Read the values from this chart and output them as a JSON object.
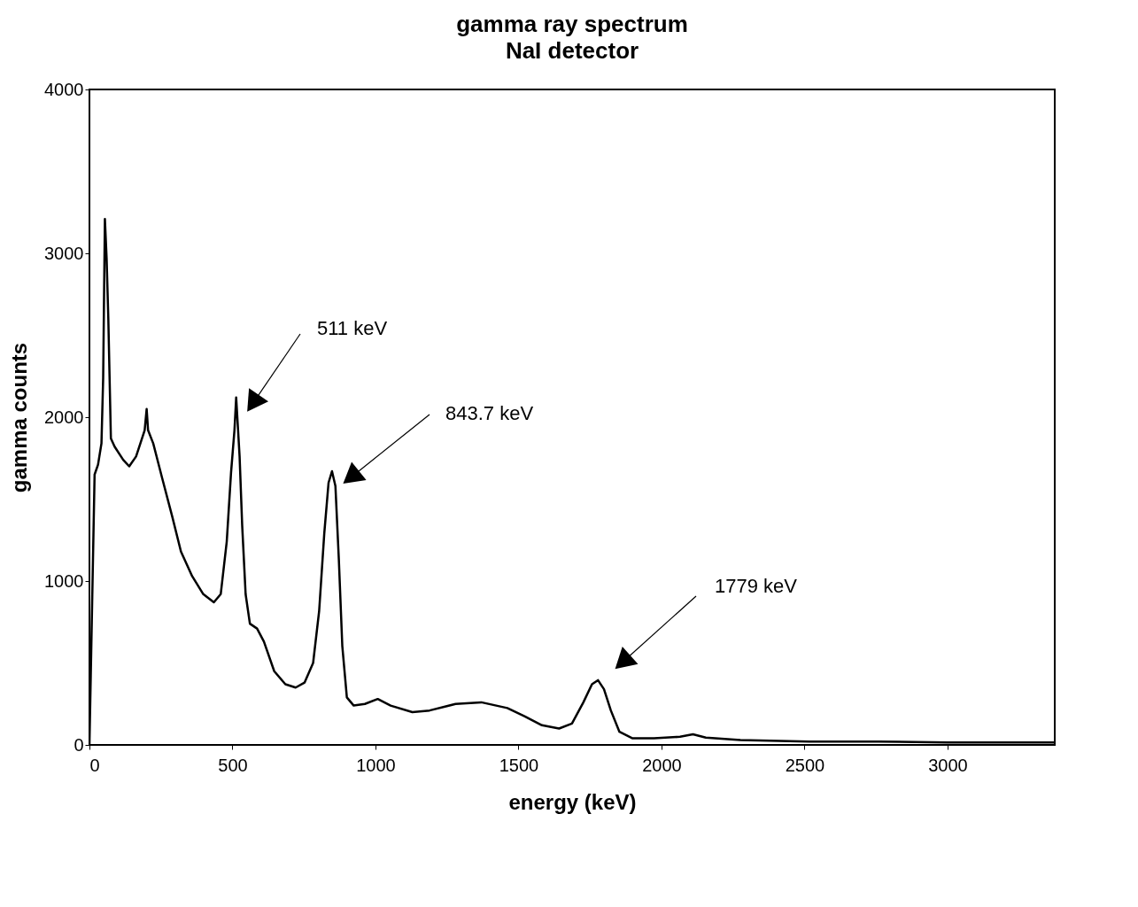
{
  "chart_data": {
    "type": "line",
    "title": "gamma ray spectrum",
    "subtitle": "NaI detector",
    "xlabel": "energy (keV)",
    "ylabel": "gamma counts",
    "xlim": [
      0,
      3375
    ],
    "xticks": [
      0,
      500,
      1000,
      1500,
      2000,
      2500,
      3000
    ],
    "ylim": [
      0,
      4000
    ],
    "yticks": [
      0,
      1000,
      2000,
      3000,
      4000
    ],
    "grid": false,
    "series": [
      {
        "color": "#000000",
        "x": [
          0,
          18,
          30,
          42,
          48,
          54,
          60,
          66,
          75,
          88,
          118,
          139,
          163,
          193,
          200,
          205,
          223,
          254,
          290,
          320,
          359,
          398,
          435,
          459,
          480,
          495,
          507,
          513,
          525,
          534,
          546,
          561,
          586,
          610,
          646,
          685,
          721,
          752,
          782,
          803,
          821,
          836,
          848,
          860,
          872,
          884,
          900,
          924,
          963,
          1008,
          1053,
          1129,
          1189,
          1280,
          1370,
          1461,
          1521,
          1582,
          1642,
          1687,
          1727,
          1757,
          1778,
          1799,
          1823,
          1853,
          1899,
          1974,
          2065,
          2110,
          2155,
          2276,
          2517,
          2759,
          3000,
          3372
        ],
        "values": [
          0,
          1650,
          1710,
          1840,
          2240,
          3210,
          2970,
          2600,
          1870,
          1820,
          1740,
          1700,
          1760,
          1920,
          2050,
          1920,
          1840,
          1630,
          1390,
          1180,
          1030,
          920,
          870,
          920,
          1240,
          1660,
          1920,
          2120,
          1760,
          1340,
          920,
          740,
          710,
          630,
          450,
          370,
          350,
          380,
          500,
          815,
          1290,
          1600,
          1670,
          1580,
          1130,
          605,
          290,
          240,
          250,
          280,
          240,
          200,
          210,
          250,
          260,
          225,
          175,
          120,
          100,
          130,
          260,
          370,
          395,
          340,
          210,
          80,
          40,
          40,
          50,
          65,
          45,
          30,
          20,
          20,
          15,
          15
        ]
      }
    ],
    "annotations": [
      "511 keV",
      "843.7 keV",
      "1779 keV"
    ]
  }
}
